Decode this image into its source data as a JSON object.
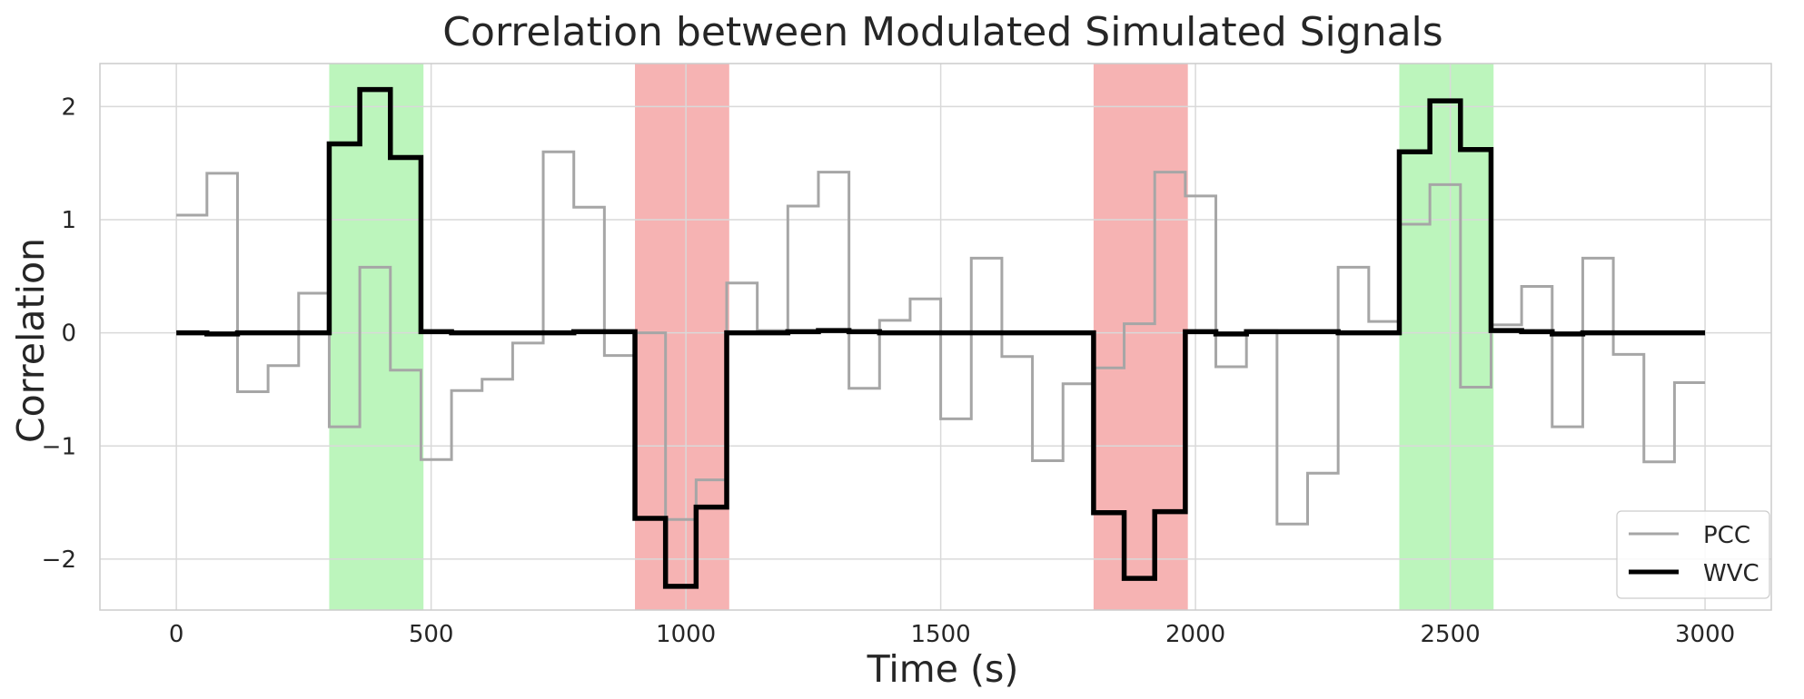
{
  "chart_data": {
    "type": "line",
    "title": "Correlation between Modulated Simulated Signals",
    "xlabel": "Time (s)",
    "ylabel": "Correlation",
    "xlim": [
      -150,
      3130
    ],
    "ylim": [
      -2.45,
      2.38
    ],
    "x_ticks": [
      0,
      500,
      1000,
      1500,
      2000,
      2500,
      3000
    ],
    "x_tick_labels": [
      "0",
      "500",
      "1000",
      "1500",
      "2000",
      "2500",
      "3000"
    ],
    "y_ticks": [
      -2,
      -1,
      0,
      1,
      2
    ],
    "y_tick_labels": [
      "−2",
      "−1",
      "0",
      "1",
      "2"
    ],
    "grid": true,
    "legend_position": "lower-right",
    "highlight_regions": [
      {
        "x0": 300,
        "x1": 485,
        "color": "#90EE90"
      },
      {
        "x0": 900,
        "x1": 1085,
        "color": "#F08080"
      },
      {
        "x0": 1800,
        "x1": 1985,
        "color": "#F08080"
      },
      {
        "x0": 2400,
        "x1": 2585,
        "color": "#90EE90"
      }
    ],
    "series": [
      {
        "name": "PCC",
        "color": "#a6a6a6",
        "style": "step",
        "x": [
          0,
          60,
          120,
          180,
          240,
          300,
          360,
          420,
          480,
          540,
          600,
          660,
          720,
          780,
          840,
          900,
          960,
          1020,
          1080,
          1140,
          1200,
          1260,
          1320,
          1380,
          1440,
          1500,
          1560,
          1620,
          1680,
          1740,
          1800,
          1860,
          1920,
          1980,
          2040,
          2100,
          2160,
          2220,
          2280,
          2340,
          2400,
          2460,
          2520,
          2580,
          2640,
          2700,
          2760,
          2820,
          2880,
          2940,
          3000
        ],
        "values": [
          1.04,
          1.41,
          -0.52,
          -0.29,
          0.35,
          -0.83,
          0.58,
          -0.33,
          -1.12,
          -0.51,
          -0.41,
          -0.09,
          1.6,
          1.11,
          -0.2,
          0.0,
          -1.65,
          -1.3,
          0.44,
          0.02,
          1.12,
          1.42,
          -0.49,
          0.11,
          0.3,
          -0.76,
          0.66,
          -0.21,
          -1.13,
          -0.45,
          -0.31,
          0.08,
          1.42,
          1.21,
          -0.3,
          0.02,
          -1.69,
          -1.24,
          0.58,
          0.1,
          0.96,
          1.31,
          -0.48,
          0.07,
          0.41,
          -0.83,
          0.66,
          -0.19,
          -1.14,
          -0.44,
          -0.44
        ]
      },
      {
        "name": "WVC",
        "color": "#000000",
        "style": "step",
        "x": [
          0,
          60,
          120,
          180,
          240,
          300,
          360,
          420,
          480,
          540,
          600,
          660,
          720,
          780,
          840,
          900,
          960,
          1020,
          1080,
          1140,
          1200,
          1260,
          1320,
          1380,
          1440,
          1500,
          1560,
          1620,
          1680,
          1740,
          1800,
          1860,
          1920,
          1980,
          2040,
          2100,
          2160,
          2220,
          2280,
          2340,
          2400,
          2460,
          2520,
          2580,
          2640,
          2700,
          2760,
          2820,
          2880,
          2940,
          3000
        ],
        "values": [
          0.0,
          -0.01,
          0.0,
          0.0,
          0.0,
          1.67,
          2.15,
          1.55,
          0.01,
          0.0,
          0.0,
          0.0,
          0.0,
          0.01,
          0.01,
          -1.64,
          -2.24,
          -1.54,
          0.0,
          0.0,
          0.01,
          0.02,
          0.01,
          0.0,
          0.0,
          0.0,
          0.0,
          0.0,
          0.0,
          0.0,
          -1.59,
          -2.17,
          -1.58,
          0.01,
          -0.01,
          0.01,
          0.01,
          0.01,
          0.0,
          0.0,
          1.6,
          2.05,
          1.62,
          0.02,
          0.01,
          -0.01,
          0.0,
          0.0,
          0.0,
          0.0,
          0.0
        ]
      }
    ]
  }
}
